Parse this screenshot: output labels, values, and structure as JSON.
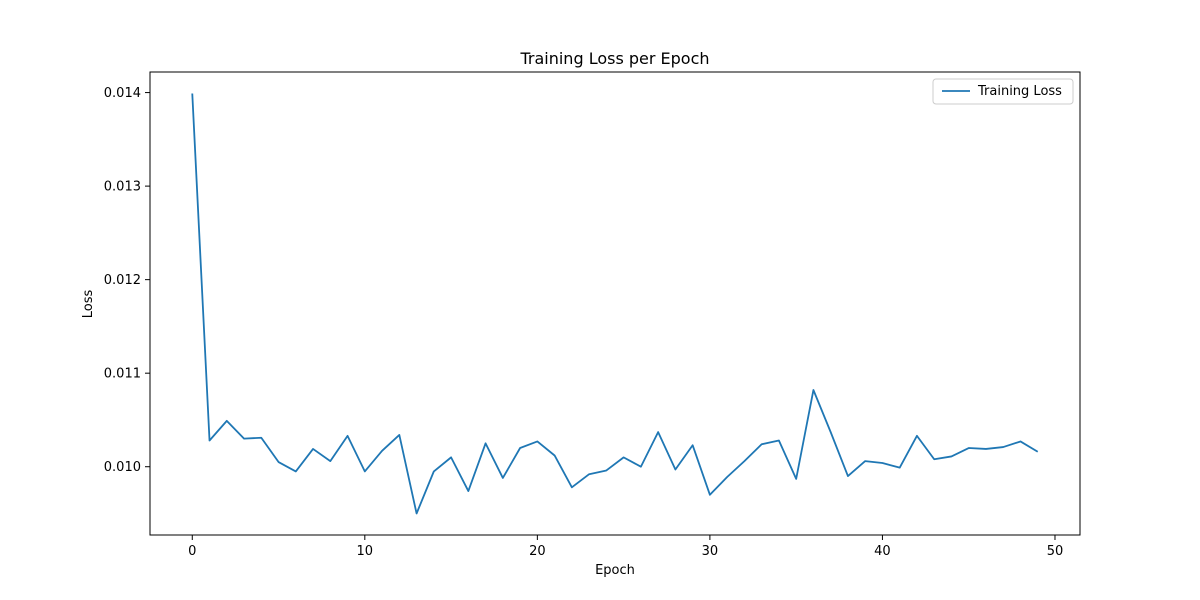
{
  "chart_data": {
    "type": "line",
    "title": "Training Loss per Epoch",
    "xlabel": "Epoch",
    "ylabel": "Loss",
    "xlim": [
      -2.45,
      51.45
    ],
    "ylim": [
      0.00927,
      0.01422
    ],
    "xticks": [
      0,
      10,
      20,
      30,
      40,
      50
    ],
    "yticks": [
      0.01,
      0.011,
      0.012,
      0.013,
      0.014
    ],
    "ytick_labels": [
      "0.010",
      "0.011",
      "0.012",
      "0.013",
      "0.014"
    ],
    "grid": false,
    "legend": "top-right",
    "series": [
      {
        "name": "Training Loss",
        "color": "#1f77b4",
        "x": [
          0,
          1,
          2,
          3,
          4,
          5,
          6,
          7,
          8,
          9,
          10,
          11,
          12,
          13,
          14,
          15,
          16,
          17,
          18,
          19,
          20,
          21,
          22,
          23,
          24,
          25,
          26,
          27,
          28,
          29,
          30,
          31,
          32,
          33,
          34,
          35,
          36,
          37,
          38,
          39,
          40,
          41,
          42,
          43,
          44,
          45,
          46,
          47,
          48,
          49
        ],
        "values": [
          0.01399,
          0.01028,
          0.01049,
          0.0103,
          0.01031,
          0.01005,
          0.00995,
          0.01019,
          0.01006,
          0.01033,
          0.00995,
          0.01017,
          0.01034,
          0.0095,
          0.00995,
          0.0101,
          0.00974,
          0.01025,
          0.00988,
          0.0102,
          0.01027,
          0.01012,
          0.00978,
          0.00992,
          0.00996,
          0.0101,
          0.01,
          0.01037,
          0.00997,
          0.01023,
          0.0097,
          0.00989,
          0.01006,
          0.01024,
          0.01028,
          0.00987,
          0.01082,
          0.01037,
          0.0099,
          0.01006,
          0.01004,
          0.00999,
          0.01033,
          0.01008,
          0.01011,
          0.0102,
          0.01019,
          0.01021,
          0.01027,
          0.01016
        ]
      }
    ]
  }
}
